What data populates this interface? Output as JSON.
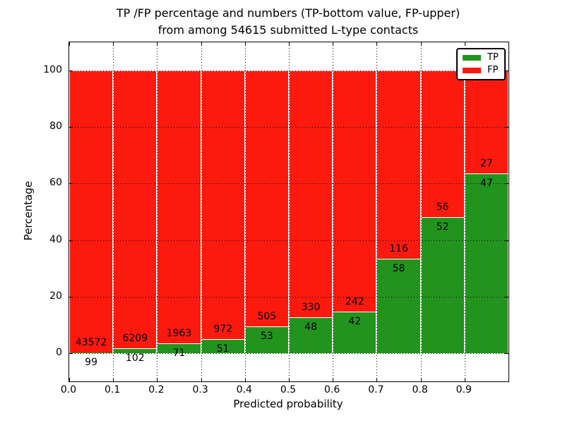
{
  "title": {
    "line1": "TP /FP percentage and numbers (TP-bottom value, FP-upper)",
    "line2": "from among 54615 submitted L-type contacts"
  },
  "axes": {
    "xlabel": "Predicted probability",
    "ylabel": "Percentage",
    "x_ticks": [
      "0.0",
      "0.1",
      "0.2",
      "0.3",
      "0.4",
      "0.5",
      "0.6",
      "0.7",
      "0.8",
      "0.9"
    ],
    "y_ticks": [
      "0",
      "20",
      "40",
      "60",
      "80",
      "100"
    ]
  },
  "legend": {
    "position": "upper right",
    "items": [
      {
        "label": "TP",
        "color": "#22941e"
      },
      {
        "label": "FP",
        "color": "#fc1a0f"
      }
    ]
  },
  "colors": {
    "tp": "#22941e",
    "fp": "#fc1a0f",
    "grid": "#000000",
    "frame": "#000000",
    "background": "#ffffff",
    "text": "#000000",
    "segment_edge": "#ffffff"
  },
  "chart_data": {
    "type": "bar",
    "stacked": true,
    "normalized": "percent",
    "title": "TP /FP percentage and numbers (TP-bottom value, FP-upper) from among 54615 submitted L-type contacts",
    "xlabel": "Predicted probability",
    "ylabel": "Percentage",
    "xlim": [
      0.0,
      1.0
    ],
    "ylim": [
      -10,
      110
    ],
    "grid": true,
    "legend_position": "upper right",
    "bin_start": [
      0.0,
      0.1,
      0.2,
      0.3,
      0.4,
      0.5,
      0.6,
      0.7,
      0.8,
      0.9
    ],
    "bin_width": 0.1,
    "total_submitted": 54615,
    "series": [
      {
        "name": "TP",
        "color": "#22941e",
        "counts": [
          99,
          102,
          71,
          51,
          53,
          48,
          42,
          58,
          52,
          47
        ]
      },
      {
        "name": "FP",
        "color": "#fc1a0f",
        "counts": [
          43572,
          6209,
          1963,
          972,
          505,
          330,
          242,
          116,
          56,
          27
        ]
      }
    ],
    "tp_percent": [
      0.23,
      1.62,
      3.49,
      4.99,
      9.5,
      12.7,
      14.79,
      33.33,
      48.15,
      63.51
    ]
  }
}
